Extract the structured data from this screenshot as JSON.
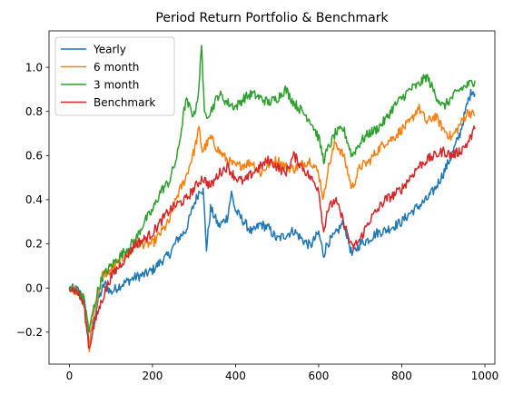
{
  "chart_data": {
    "type": "line",
    "title": "Period Return Portfolio & Benchmark",
    "xlabel": "",
    "ylabel": "",
    "xlim": [
      -49,
      1024
    ],
    "ylim": [
      -0.345,
      1.165
    ],
    "xticks": [
      0,
      200,
      400,
      600,
      800,
      1000
    ],
    "yticks": [
      -0.2,
      0.0,
      0.2,
      0.4,
      0.6,
      0.8,
      1.0
    ],
    "ytick_labels": [
      "−0.2",
      "0.0",
      "0.2",
      "0.4",
      "0.6",
      "0.8",
      "1.0"
    ],
    "grid": false,
    "legend_position": "top-left",
    "series": [
      {
        "name": "Yearly",
        "color": "#1f77b4",
        "points": [
          [
            0,
            0.0
          ],
          [
            20,
            -0.01
          ],
          [
            35,
            -0.05
          ],
          [
            48,
            -0.26
          ],
          [
            55,
            -0.18
          ],
          [
            70,
            -0.05
          ],
          [
            85,
            0.02
          ],
          [
            100,
            -0.02
          ],
          [
            120,
            0.01
          ],
          [
            140,
            0.03
          ],
          [
            160,
            0.05
          ],
          [
            180,
            0.06
          ],
          [
            200,
            0.08
          ],
          [
            220,
            0.12
          ],
          [
            240,
            0.15
          ],
          [
            260,
            0.22
          ],
          [
            280,
            0.26
          ],
          [
            300,
            0.38
          ],
          [
            315,
            0.45
          ],
          [
            322,
            0.44
          ],
          [
            330,
            0.18
          ],
          [
            340,
            0.36
          ],
          [
            360,
            0.28
          ],
          [
            380,
            0.32
          ],
          [
            390,
            0.43
          ],
          [
            400,
            0.35
          ],
          [
            420,
            0.3
          ],
          [
            440,
            0.25
          ],
          [
            460,
            0.29
          ],
          [
            480,
            0.27
          ],
          [
            500,
            0.22
          ],
          [
            520,
            0.24
          ],
          [
            540,
            0.26
          ],
          [
            560,
            0.22
          ],
          [
            580,
            0.19
          ],
          [
            600,
            0.25
          ],
          [
            612,
            0.15
          ],
          [
            620,
            0.2
          ],
          [
            640,
            0.24
          ],
          [
            660,
            0.3
          ],
          [
            680,
            0.15
          ],
          [
            700,
            0.2
          ],
          [
            720,
            0.22
          ],
          [
            740,
            0.25
          ],
          [
            760,
            0.26
          ],
          [
            780,
            0.28
          ],
          [
            800,
            0.3
          ],
          [
            820,
            0.34
          ],
          [
            840,
            0.37
          ],
          [
            860,
            0.4
          ],
          [
            880,
            0.45
          ],
          [
            900,
            0.52
          ],
          [
            920,
            0.6
          ],
          [
            940,
            0.7
          ],
          [
            960,
            0.85
          ],
          [
            970,
            0.9
          ],
          [
            976,
            0.88
          ]
        ]
      },
      {
        "name": "6 month",
        "color": "#ff7f0e",
        "points": [
          [
            0,
            0.0
          ],
          [
            20,
            -0.01
          ],
          [
            35,
            -0.06
          ],
          [
            48,
            -0.28
          ],
          [
            55,
            -0.15
          ],
          [
            70,
            -0.02
          ],
          [
            80,
            0.06
          ],
          [
            100,
            0.08
          ],
          [
            120,
            0.12
          ],
          [
            140,
            0.15
          ],
          [
            160,
            0.2
          ],
          [
            180,
            0.2
          ],
          [
            200,
            0.2
          ],
          [
            220,
            0.25
          ],
          [
            240,
            0.3
          ],
          [
            260,
            0.42
          ],
          [
            280,
            0.5
          ],
          [
            300,
            0.62
          ],
          [
            312,
            0.72
          ],
          [
            320,
            0.62
          ],
          [
            340,
            0.68
          ],
          [
            360,
            0.62
          ],
          [
            380,
            0.58
          ],
          [
            400,
            0.55
          ],
          [
            420,
            0.56
          ],
          [
            440,
            0.57
          ],
          [
            460,
            0.52
          ],
          [
            480,
            0.56
          ],
          [
            500,
            0.58
          ],
          [
            520,
            0.55
          ],
          [
            540,
            0.54
          ],
          [
            560,
            0.56
          ],
          [
            580,
            0.58
          ],
          [
            600,
            0.52
          ],
          [
            612,
            0.4
          ],
          [
            620,
            0.52
          ],
          [
            640,
            0.66
          ],
          [
            660,
            0.6
          ],
          [
            680,
            0.45
          ],
          [
            700,
            0.55
          ],
          [
            720,
            0.57
          ],
          [
            740,
            0.62
          ],
          [
            760,
            0.66
          ],
          [
            780,
            0.68
          ],
          [
            800,
            0.72
          ],
          [
            820,
            0.75
          ],
          [
            840,
            0.82
          ],
          [
            860,
            0.75
          ],
          [
            880,
            0.78
          ],
          [
            900,
            0.72
          ],
          [
            920,
            0.68
          ],
          [
            940,
            0.74
          ],
          [
            960,
            0.8
          ],
          [
            976,
            0.78
          ]
        ]
      },
      {
        "name": "3 month",
        "color": "#2ca02c",
        "points": [
          [
            0,
            0.0
          ],
          [
            20,
            -0.02
          ],
          [
            35,
            -0.05
          ],
          [
            48,
            -0.2
          ],
          [
            55,
            -0.12
          ],
          [
            70,
            0.0
          ],
          [
            80,
            0.05
          ],
          [
            100,
            0.1
          ],
          [
            120,
            0.14
          ],
          [
            140,
            0.18
          ],
          [
            160,
            0.22
          ],
          [
            180,
            0.3
          ],
          [
            200,
            0.35
          ],
          [
            220,
            0.44
          ],
          [
            240,
            0.48
          ],
          [
            260,
            0.6
          ],
          [
            280,
            0.85
          ],
          [
            300,
            0.78
          ],
          [
            312,
            0.9
          ],
          [
            318,
            1.12
          ],
          [
            325,
            0.78
          ],
          [
            340,
            0.8
          ],
          [
            360,
            0.88
          ],
          [
            380,
            0.84
          ],
          [
            400,
            0.82
          ],
          [
            420,
            0.86
          ],
          [
            440,
            0.88
          ],
          [
            460,
            0.86
          ],
          [
            480,
            0.84
          ],
          [
            500,
            0.86
          ],
          [
            520,
            0.9
          ],
          [
            540,
            0.84
          ],
          [
            560,
            0.8
          ],
          [
            580,
            0.76
          ],
          [
            600,
            0.68
          ],
          [
            612,
            0.58
          ],
          [
            620,
            0.62
          ],
          [
            640,
            0.7
          ],
          [
            660,
            0.72
          ],
          [
            680,
            0.6
          ],
          [
            700,
            0.66
          ],
          [
            720,
            0.7
          ],
          [
            740,
            0.72
          ],
          [
            760,
            0.76
          ],
          [
            780,
            0.82
          ],
          [
            800,
            0.86
          ],
          [
            820,
            0.9
          ],
          [
            840,
            0.92
          ],
          [
            860,
            0.96
          ],
          [
            880,
            0.88
          ],
          [
            900,
            0.82
          ],
          [
            920,
            0.86
          ],
          [
            940,
            0.9
          ],
          [
            960,
            0.92
          ],
          [
            976,
            0.94
          ]
        ]
      },
      {
        "name": "Benchmark",
        "color": "#d62728",
        "points": [
          [
            0,
            0.0
          ],
          [
            20,
            -0.02
          ],
          [
            35,
            -0.08
          ],
          [
            48,
            -0.28
          ],
          [
            55,
            -0.2
          ],
          [
            70,
            -0.1
          ],
          [
            85,
            -0.02
          ],
          [
            100,
            0.05
          ],
          [
            120,
            0.1
          ],
          [
            140,
            0.15
          ],
          [
            160,
            0.2
          ],
          [
            180,
            0.22
          ],
          [
            200,
            0.25
          ],
          [
            220,
            0.3
          ],
          [
            240,
            0.35
          ],
          [
            260,
            0.38
          ],
          [
            280,
            0.4
          ],
          [
            300,
            0.45
          ],
          [
            320,
            0.5
          ],
          [
            340,
            0.46
          ],
          [
            360,
            0.52
          ],
          [
            380,
            0.55
          ],
          [
            400,
            0.5
          ],
          [
            420,
            0.48
          ],
          [
            440,
            0.52
          ],
          [
            460,
            0.55
          ],
          [
            480,
            0.58
          ],
          [
            500,
            0.55
          ],
          [
            520,
            0.52
          ],
          [
            540,
            0.6
          ],
          [
            560,
            0.55
          ],
          [
            580,
            0.5
          ],
          [
            600,
            0.45
          ],
          [
            612,
            0.25
          ],
          [
            620,
            0.35
          ],
          [
            640,
            0.4
          ],
          [
            660,
            0.3
          ],
          [
            680,
            0.18
          ],
          [
            700,
            0.22
          ],
          [
            720,
            0.3
          ],
          [
            740,
            0.35
          ],
          [
            760,
            0.4
          ],
          [
            780,
            0.42
          ],
          [
            800,
            0.45
          ],
          [
            820,
            0.5
          ],
          [
            840,
            0.55
          ],
          [
            860,
            0.58
          ],
          [
            880,
            0.6
          ],
          [
            900,
            0.62
          ],
          [
            920,
            0.6
          ],
          [
            940,
            0.62
          ],
          [
            960,
            0.66
          ],
          [
            976,
            0.72
          ]
        ]
      }
    ]
  }
}
